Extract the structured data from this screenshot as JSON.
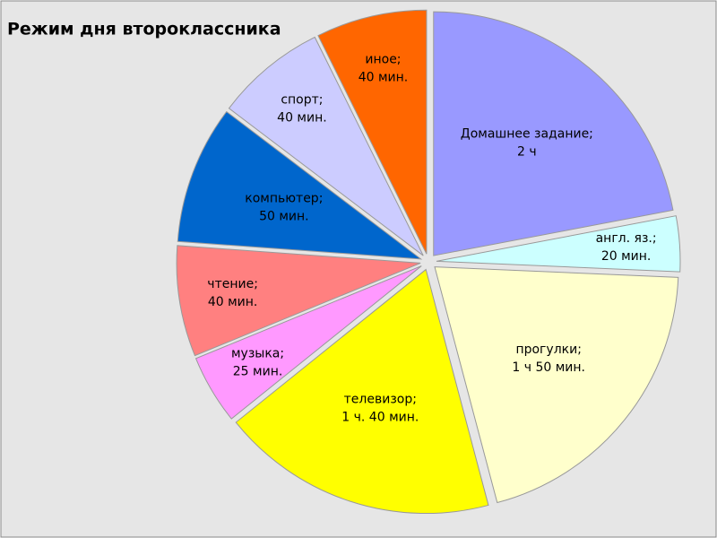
{
  "chart_data": {
    "type": "pie",
    "title": "Режим дня второклассника",
    "categories": [
      "Домашнее задание;",
      "англ. яз.;",
      "прогулки;",
      "телевизор;",
      "музыка;",
      "чтение;",
      "компьютер;",
      "спорт;",
      "иное;"
    ],
    "values": [
      120,
      20,
      110,
      100,
      25,
      40,
      50,
      40,
      40
    ],
    "value_labels": [
      "2 ч",
      "20 мин.",
      "1 ч 50 мин.",
      "1 ч. 40 мин.",
      "25 мин.",
      "40 мин.",
      "50 мин.",
      "40 мин.",
      "40 мин."
    ],
    "colors": [
      "#9999ff",
      "#ccffff",
      "#ffffcc",
      "#ffff00",
      "#ff99ff",
      "#ff8080",
      "#0066cc",
      "#ccccff",
      "#ff6600"
    ]
  }
}
